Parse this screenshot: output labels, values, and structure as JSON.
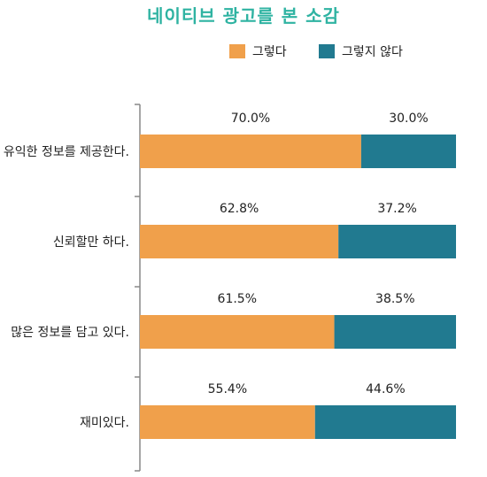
{
  "chart_data": {
    "type": "bar",
    "orientation": "horizontal",
    "stacked": true,
    "title": "네이티브 광고를 본 소감",
    "categories": [
      "유익한 정보를 제공한다.",
      "신뢰할만 하다.",
      "많은 정보를 담고 있다.",
      "재미있다."
    ],
    "series": [
      {
        "name": "그렇다",
        "values": [
          70.0,
          62.8,
          61.5,
          55.4
        ],
        "labels": [
          "70.0%",
          "62.8%",
          "61.5%",
          "55.4%"
        ],
        "color": "#f0a04b"
      },
      {
        "name": "그렇지 않다",
        "values": [
          30.0,
          37.2,
          38.5,
          44.6
        ],
        "labels": [
          "30.0%",
          "37.2%",
          "38.5%",
          "44.6%"
        ],
        "color": "#217a90"
      }
    ],
    "xlim": [
      0,
      100
    ],
    "legend_position": "top",
    "grid": false
  },
  "colors": {
    "title": "#2fb3a2",
    "axis": "#888888",
    "text": "#222222"
  }
}
